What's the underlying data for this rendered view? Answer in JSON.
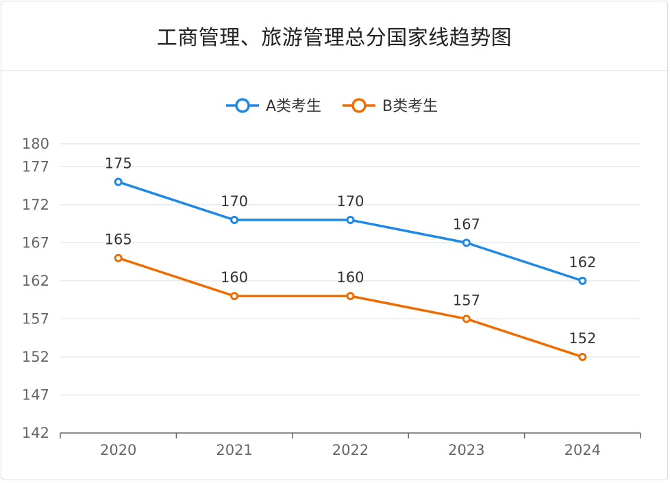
{
  "title": "工商管理、旅游管理总分国家线趋势图",
  "colors": {
    "series_a": "#1e88e5",
    "series_b": "#ef6c00",
    "grid": "#e0e6ee",
    "axis": "#666666"
  },
  "chart_data": {
    "type": "line",
    "title": "工商管理、旅游管理总分国家线趋势图",
    "categories": [
      "2020",
      "2021",
      "2022",
      "2023",
      "2024"
    ],
    "y_ticks": [
      142,
      147,
      152,
      157,
      162,
      167,
      172,
      177,
      180
    ],
    "ylim": [
      142,
      180
    ],
    "grid": true,
    "legend_position": "top-center",
    "series": [
      {
        "name": "A类考生",
        "values": [
          175,
          170,
          170,
          167,
          162
        ],
        "color": "#1e88e5"
      },
      {
        "name": "B类考生",
        "values": [
          165,
          160,
          160,
          157,
          152
        ],
        "color": "#ef6c00"
      }
    ]
  }
}
